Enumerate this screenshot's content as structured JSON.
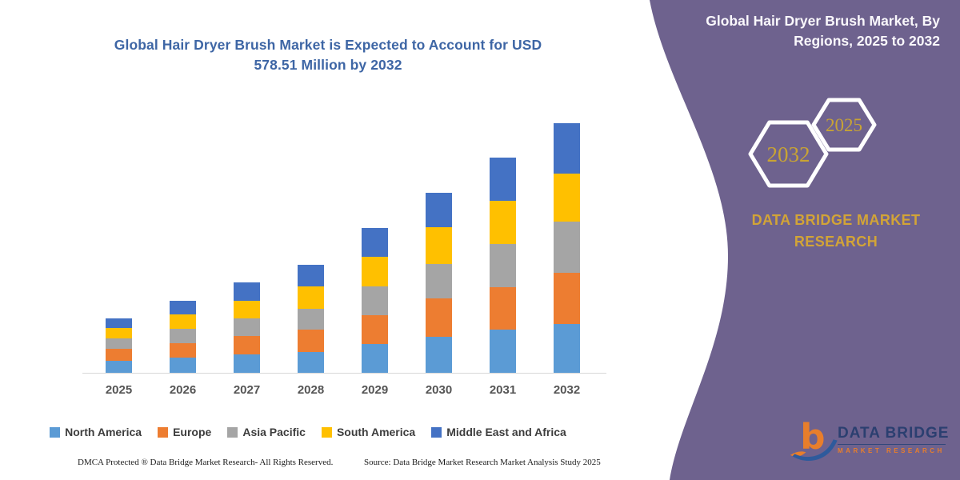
{
  "chart": {
    "title_line1": "Global Hair Dryer Brush Market is Expected to Account for USD",
    "title_line2": "578.51 Million by 2032",
    "footer_left": "DMCA Protected ® Data Bridge Market Research-  All Rights Reserved.",
    "footer_source": "Source: Data Bridge Market Research  Market Analysis Study 2025"
  },
  "chart_data": {
    "type": "bar",
    "stacked": true,
    "title": "Global Hair Dryer Brush Market is Expected to Account for USD 578.51 Million by 2032",
    "unit": "USD Million",
    "categories": [
      "2025",
      "2026",
      "2027",
      "2028",
      "2029",
      "2030",
      "2031",
      "2032"
    ],
    "series": [
      {
        "name": "North America",
        "color": "#5B9BD5",
        "values": [
          28,
          35,
          43,
          49,
          66,
          84,
          101,
          112.5
        ]
      },
      {
        "name": "Europe",
        "color": "#ED7D31",
        "values": [
          27,
          34,
          43,
          52,
          67,
          88,
          98,
          118.6
        ]
      },
      {
        "name": "Asia Pacific",
        "color": "#A5A5A5",
        "values": [
          25,
          33,
          41,
          48,
          67,
          80,
          100,
          118.6
        ]
      },
      {
        "name": "South America",
        "color": "#FFC000",
        "values": [
          24,
          34,
          39,
          52,
          68,
          86,
          100,
          111.4
        ]
      },
      {
        "name": "Middle East and Africa",
        "color": "#4472C4",
        "values": [
          23,
          31,
          44,
          50,
          67,
          80,
          100,
          117.4
        ]
      }
    ],
    "totals": [
      127,
      167,
      210,
      251,
      335,
      418,
      499,
      578.51
    ],
    "xlabel": "",
    "ylabel": "",
    "ylim": [
      0,
      578.51
    ],
    "grid": false,
    "legend_position": "bottom",
    "values_are_estimates_read_from_chart": true
  },
  "panel": {
    "title_line1": "Global Hair Dryer Brush Market, By",
    "title_line2": "Regions, 2025 to 2032",
    "hex_large_year": "2032",
    "hex_small_year": "2025",
    "brand_line1": "DATA BRIDGE MARKET",
    "brand_line2": "RESEARCH",
    "logo": {
      "letter": "b",
      "name_line": "DATA BRIDGE",
      "sub_line": "MARKET RESEARCH"
    }
  },
  "colors": {
    "title_blue": "#3E66A5",
    "panel_purple": "#6E628E",
    "gold_text": "#C9A433",
    "brand_gold": "#D2A437",
    "axis_text": "#545454",
    "legend_text": "#3D3D3D",
    "axis_line": "#D8D8D8",
    "logo_orange": "#E87E2B",
    "logo_navy": "#2E5A9C"
  }
}
